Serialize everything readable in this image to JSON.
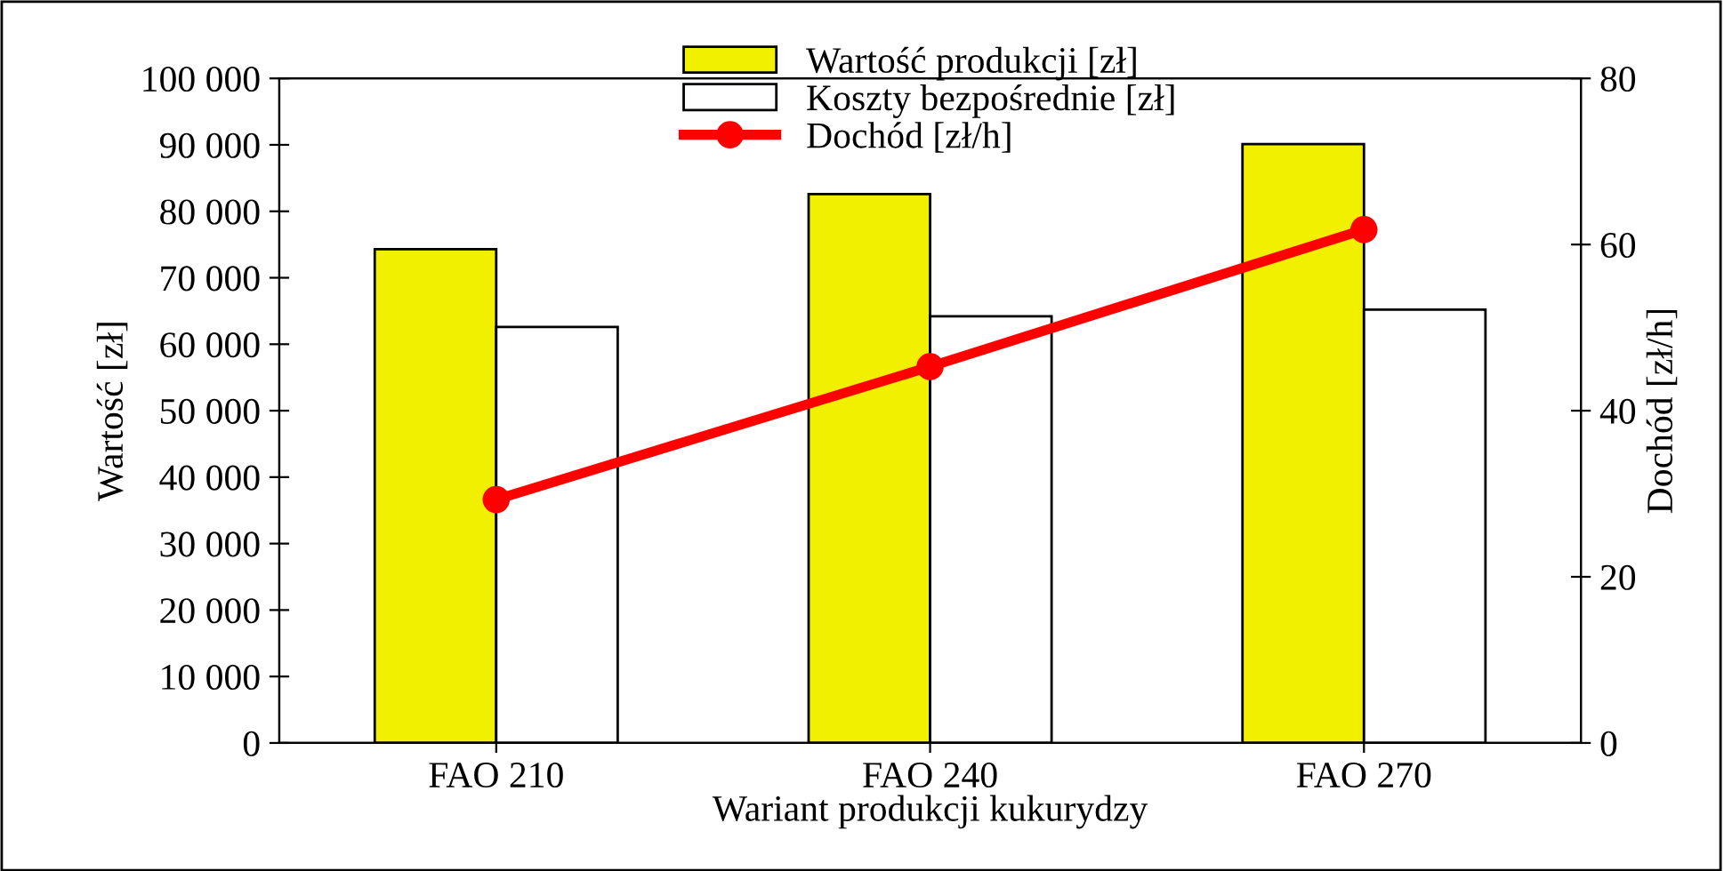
{
  "chart_data": {
    "type": "bar",
    "xlabel": "Wariant produkcji kukurydzy",
    "ylabel": "Wartość [zł]",
    "y2label": "Dochód [zł/h]",
    "categories": [
      "FAO 210",
      "FAO 240",
      "FAO 270"
    ],
    "series": [
      {
        "name": "Wartość produkcji [zł]",
        "color": "#f0f000",
        "values": [
          74300,
          82600,
          90100
        ]
      },
      {
        "name": "Koszty bezpośrednie [zł]",
        "color": "#ffffff",
        "values": [
          62600,
          64200,
          65200
        ]
      },
      {
        "name": "Dochód [zł/h]",
        "type": "line",
        "axis": "y2",
        "color": "#ff0000",
        "marker": "circle",
        "values": [
          29.3,
          45.3,
          61.8
        ]
      }
    ],
    "ylim": [
      0,
      100000
    ],
    "yticks": [
      {
        "value": 0,
        "label": "0"
      },
      {
        "value": 10000,
        "label": "10 000"
      },
      {
        "value": 20000,
        "label": "20 000"
      },
      {
        "value": 30000,
        "label": "30 000"
      },
      {
        "value": 40000,
        "label": "40 000"
      },
      {
        "value": 50000,
        "label": "50 000"
      },
      {
        "value": 60000,
        "label": "60 000"
      },
      {
        "value": 70000,
        "label": "70 000"
      },
      {
        "value": 80000,
        "label": "80 000"
      },
      {
        "value": 90000,
        "label": "90 000"
      },
      {
        "value": 100000,
        "label": "100 000"
      }
    ],
    "y2lim": [
      0,
      80
    ],
    "y2ticks": [
      0,
      20,
      40,
      60,
      80
    ],
    "grid": false,
    "legend": "top"
  }
}
